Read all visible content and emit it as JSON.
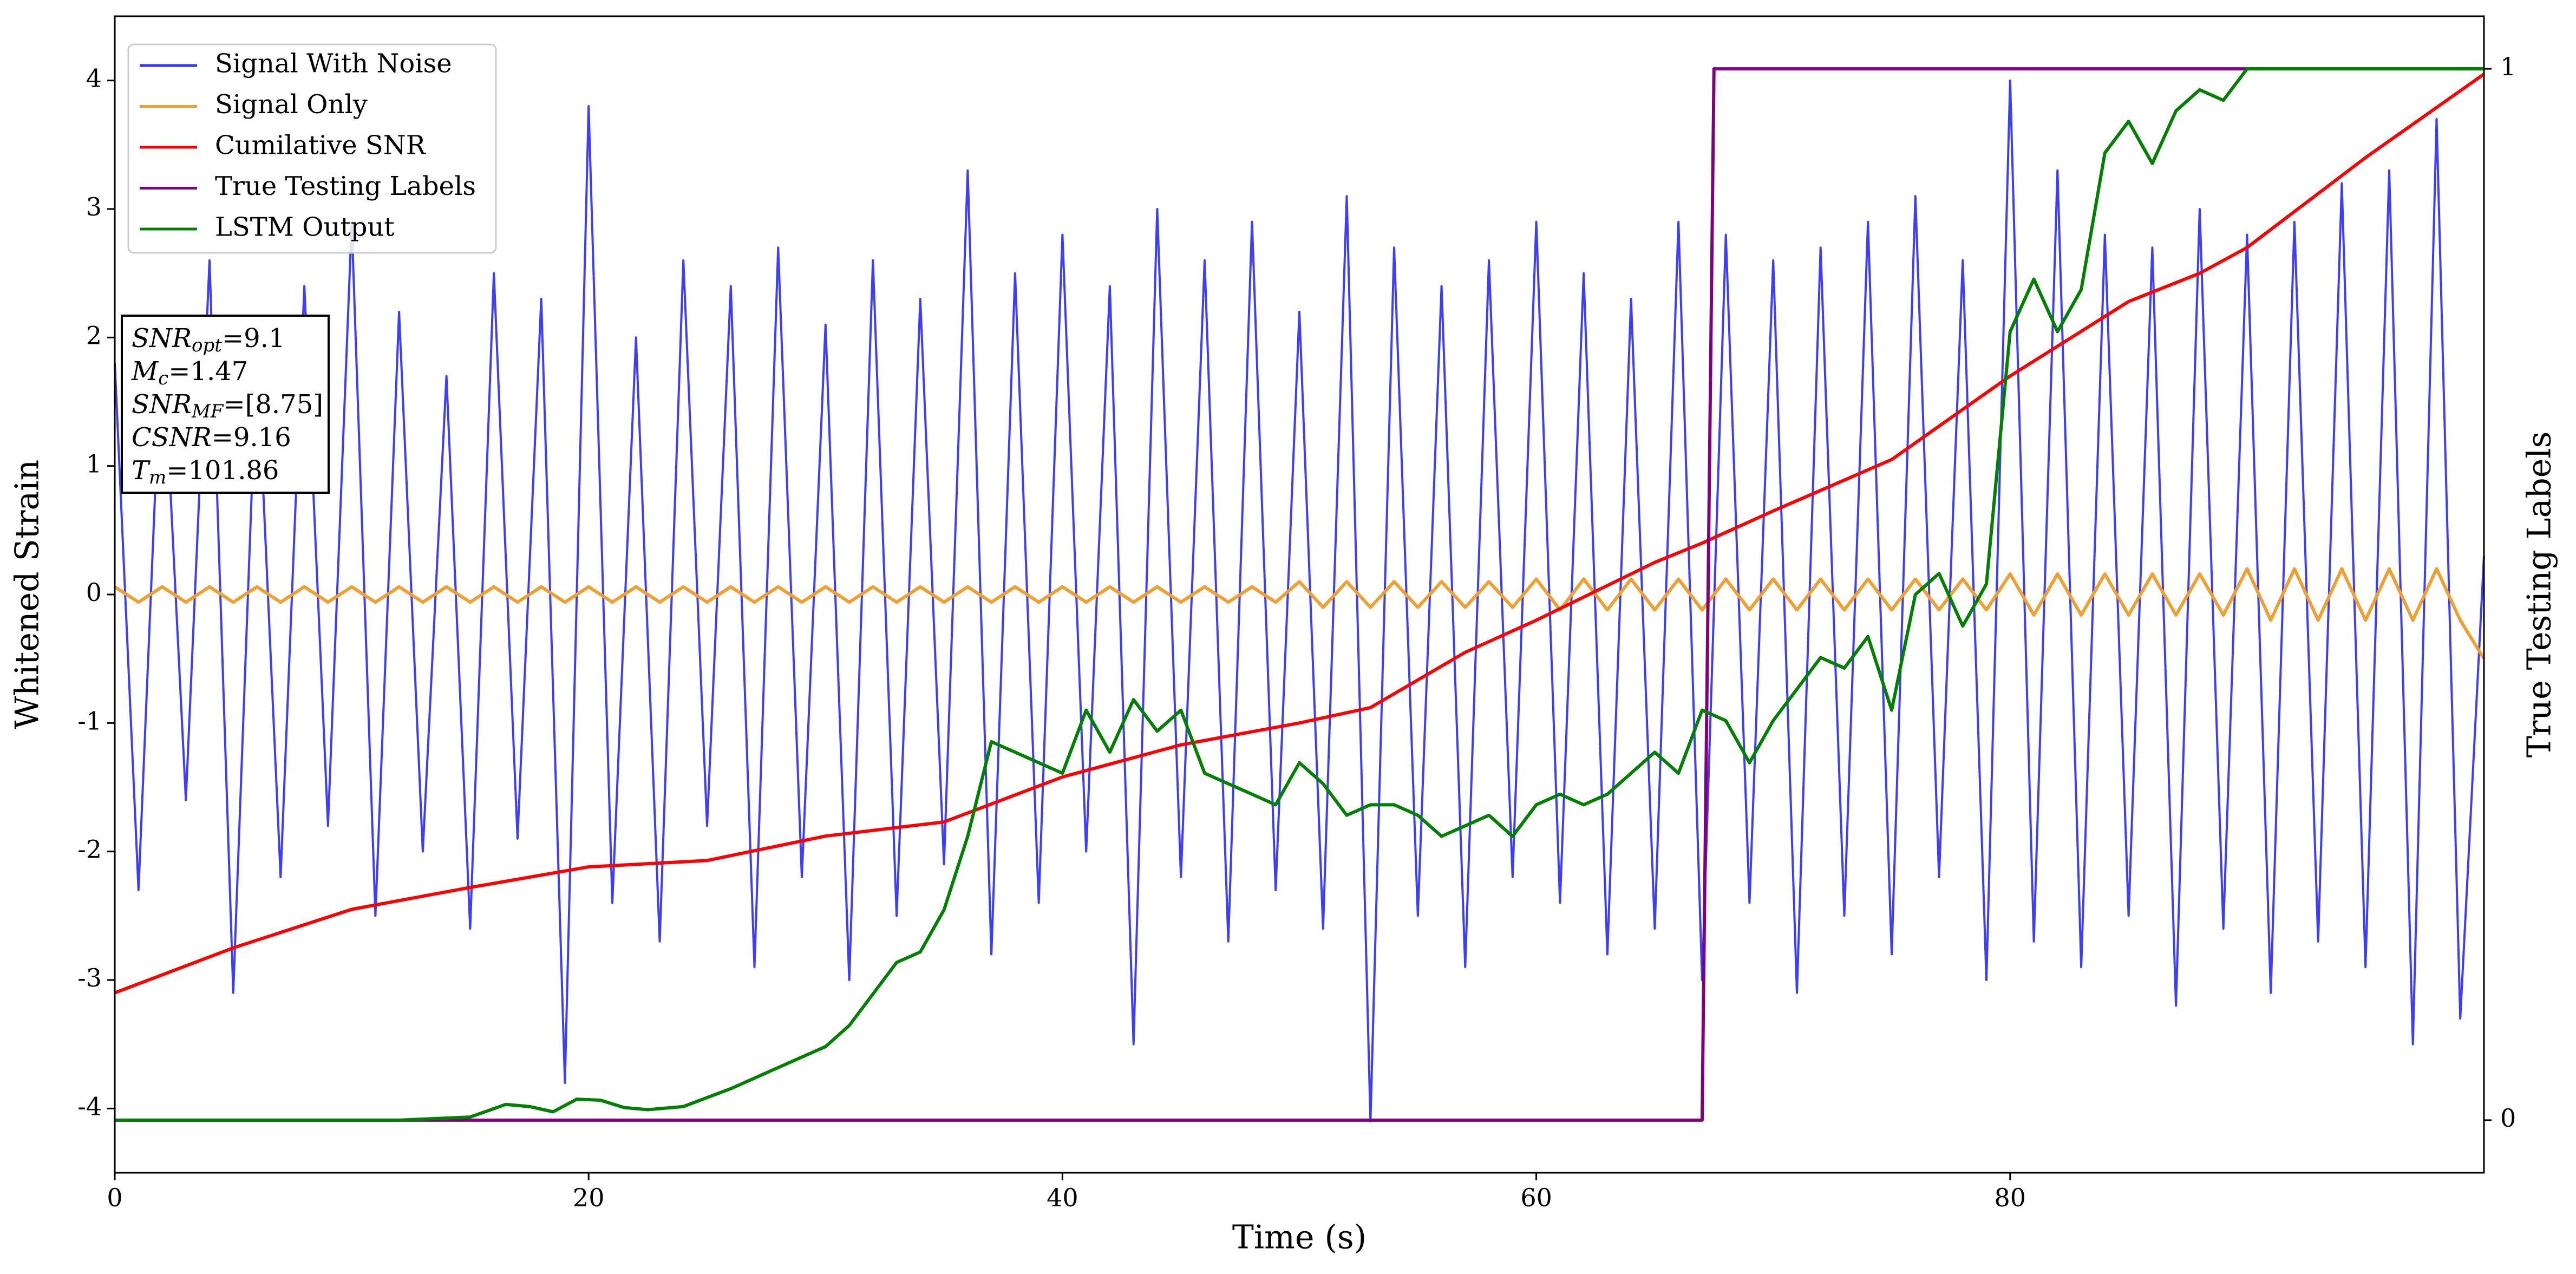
{
  "chart_data": {
    "type": "line",
    "xlabel": "Time (s)",
    "ylabel": "Whitened Strain",
    "y2label": "True Testing Labels",
    "xlim": [
      0,
      100
    ],
    "ylim": [
      -4.5,
      4.5
    ],
    "y2lim": [
      -0.05,
      1.05
    ],
    "xticks": [
      0,
      20,
      40,
      60,
      80
    ],
    "yticks": [
      -4,
      -3,
      -2,
      -1,
      0,
      1,
      2,
      3,
      4
    ],
    "y2ticks": [
      0,
      1
    ],
    "legend": "upper left",
    "x": [
      0,
      1,
      2,
      3,
      4,
      5,
      6,
      7,
      8,
      9,
      10,
      11,
      12,
      13,
      14,
      15,
      16,
      17,
      18,
      19,
      20,
      21,
      22,
      23,
      24,
      25,
      26,
      27,
      28,
      29,
      30,
      31,
      32,
      33,
      34,
      35,
      36,
      37,
      38,
      39,
      40,
      41,
      42,
      43,
      44,
      45,
      46,
      47,
      48,
      49,
      50,
      51,
      52,
      53,
      54,
      55,
      56,
      57,
      58,
      59,
      60,
      61,
      62,
      63,
      64,
      65,
      66,
      67,
      68,
      69,
      70,
      71,
      72,
      73,
      74,
      75,
      76,
      77,
      78,
      79,
      80,
      81,
      82,
      83,
      84,
      85,
      86,
      87,
      88,
      89,
      90,
      91,
      92,
      93,
      94,
      95,
      96,
      97,
      98,
      99,
      100
    ],
    "series": [
      {
        "name": "Signal With Noise",
        "color": "#3333ff",
        "values": [
          1.8,
          -2.3,
          2.1,
          -1.6,
          2.6,
          -3.1,
          1.9,
          -2.2,
          2.4,
          -1.8,
          2.9,
          -2.5,
          2.2,
          -2.0,
          1.7,
          -2.6,
          2.5,
          -1.9,
          2.3,
          -3.8,
          3.8,
          -2.4,
          2.0,
          -2.7,
          2.6,
          -1.8,
          2.4,
          -2.9,
          2.7,
          -2.2,
          2.1,
          -3.0,
          2.6,
          -2.5,
          2.3,
          -2.1,
          3.3,
          -2.8,
          2.5,
          -2.4,
          2.8,
          -2.0,
          2.4,
          -3.5,
          3.0,
          -2.2,
          2.6,
          -2.7,
          2.9,
          -2.3,
          2.2,
          -2.6,
          3.1,
          -4.1,
          2.7,
          -2.5,
          2.4,
          -2.9,
          2.6,
          -2.2,
          2.9,
          -2.4,
          2.5,
          -2.8,
          2.3,
          -2.6,
          2.9,
          -3.0,
          2.8,
          -2.4,
          2.6,
          -3.1,
          2.7,
          -2.5,
          2.9,
          -2.8,
          3.1,
          -2.2,
          2.6,
          -3.0,
          4.0,
          -2.7,
          3.3,
          -2.9,
          2.8,
          -2.5,
          2.7,
          -3.2,
          3.0,
          -2.6,
          2.8,
          -3.1,
          2.9,
          -2.7,
          3.2,
          -2.9,
          3.3,
          -3.5,
          3.7,
          -3.3,
          0.3
        ]
      },
      {
        "name": "Signal Only",
        "color": "#f0a030",
        "values": [
          0.06,
          -0.06,
          0.06,
          -0.06,
          0.06,
          -0.06,
          0.06,
          -0.06,
          0.06,
          -0.06,
          0.06,
          -0.06,
          0.06,
          -0.06,
          0.06,
          -0.06,
          0.06,
          -0.06,
          0.06,
          -0.06,
          0.06,
          -0.06,
          0.06,
          -0.06,
          0.06,
          -0.06,
          0.06,
          -0.06,
          0.06,
          -0.06,
          0.06,
          -0.06,
          0.06,
          -0.06,
          0.06,
          -0.06,
          0.06,
          -0.06,
          0.06,
          -0.06,
          0.06,
          -0.06,
          0.06,
          -0.06,
          0.06,
          -0.06,
          0.06,
          -0.06,
          0.06,
          -0.06,
          0.1,
          -0.1,
          0.1,
          -0.1,
          0.1,
          -0.1,
          0.1,
          -0.1,
          0.1,
          -0.1,
          0.12,
          -0.12,
          0.12,
          -0.12,
          0.12,
          -0.12,
          0.12,
          -0.12,
          0.12,
          -0.12,
          0.12,
          -0.12,
          0.12,
          -0.12,
          0.12,
          -0.12,
          0.12,
          -0.12,
          0.12,
          -0.12,
          0.16,
          -0.16,
          0.16,
          -0.16,
          0.16,
          -0.16,
          0.16,
          -0.16,
          0.16,
          -0.16,
          0.2,
          -0.2,
          0.2,
          -0.2,
          0.2,
          -0.2,
          0.2,
          -0.2,
          0.2,
          -0.2,
          -0.5
        ]
      },
      {
        "name": "Cumilative SNR",
        "color": "#ff0000",
        "x": [
          0,
          5,
          10,
          15,
          20,
          25,
          30,
          35,
          40,
          45,
          50,
          53,
          57,
          60,
          65,
          67,
          70,
          75,
          80,
          85,
          88,
          90,
          95,
          100
        ],
        "values": [
          -3.1,
          -2.75,
          -2.45,
          -2.28,
          -2.12,
          -2.07,
          -1.88,
          -1.77,
          -1.42,
          -1.17,
          -1.0,
          -0.88,
          -0.45,
          -0.2,
          0.25,
          0.4,
          0.65,
          1.05,
          1.7,
          2.28,
          2.5,
          2.7,
          3.4,
          4.05
        ]
      },
      {
        "name": "True Testing Labels",
        "color": "#800080",
        "axis": "y2",
        "x": [
          0,
          67,
          67.5,
          100
        ],
        "values": [
          0,
          0,
          1,
          1
        ]
      },
      {
        "name": "LSTM Output",
        "color": "#008000",
        "axis": "y2",
        "x": [
          0,
          12,
          15,
          16.5,
          17.5,
          18.5,
          19.5,
          20.5,
          21.5,
          22.5,
          24,
          26,
          28,
          29,
          30,
          31,
          32,
          33,
          34,
          35,
          36,
          37,
          38,
          40,
          41,
          42,
          43,
          44,
          45,
          46,
          47,
          48,
          49,
          50,
          51,
          52,
          53,
          54,
          55,
          56,
          57,
          58,
          59,
          60,
          61,
          62,
          63,
          64,
          65,
          66,
          67,
          68,
          69,
          70,
          71,
          72,
          73,
          74,
          75,
          76,
          77,
          78,
          79,
          80,
          81,
          82,
          83,
          84,
          85,
          86,
          87,
          88,
          89,
          90,
          91,
          95,
          100
        ],
        "values": [
          0,
          0,
          0.003,
          0.015,
          0.013,
          0.008,
          0.02,
          0.019,
          0.012,
          0.01,
          0.013,
          0.03,
          0.05,
          0.06,
          0.07,
          0.09,
          0.12,
          0.15,
          0.16,
          0.2,
          0.27,
          0.36,
          0.35,
          0.33,
          0.39,
          0.35,
          0.4,
          0.37,
          0.39,
          0.33,
          0.32,
          0.31,
          0.3,
          0.34,
          0.32,
          0.29,
          0.3,
          0.3,
          0.29,
          0.27,
          0.28,
          0.29,
          0.27,
          0.3,
          0.31,
          0.3,
          0.31,
          0.33,
          0.35,
          0.33,
          0.39,
          0.38,
          0.34,
          0.38,
          0.41,
          0.44,
          0.43,
          0.46,
          0.39,
          0.5,
          0.52,
          0.47,
          0.51,
          0.75,
          0.8,
          0.75,
          0.79,
          0.92,
          0.95,
          0.91,
          0.96,
          0.98,
          0.97,
          1,
          1,
          1,
          1
        ]
      }
    ],
    "annotation": [
      {
        "label": "SNR",
        "sub": "opt",
        "text": "=9.1"
      },
      {
        "label": "M",
        "sub": "c",
        "text": "=1.47"
      },
      {
        "label": "SNR",
        "sub": "MF",
        "text": "=[8.75]"
      },
      {
        "label": "CSNR",
        "text": "=9.16"
      },
      {
        "label": "T",
        "sub": "m",
        "text": "=101.86"
      }
    ]
  }
}
